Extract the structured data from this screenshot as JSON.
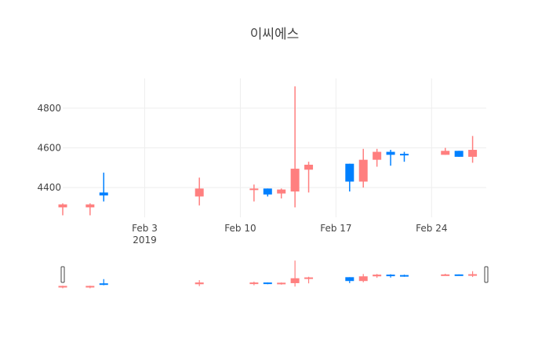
{
  "chart_data": {
    "type": "candlestick",
    "title": "이씨에스",
    "x_tick_labels": [
      "Feb 3\n2019",
      "Feb 10",
      "Feb 17",
      "Feb 24"
    ],
    "x_tick_dates": [
      "2019-02-03",
      "2019-02-10",
      "2019-02-17",
      "2019-02-24"
    ],
    "y_tick_labels": [
      "4400",
      "4600",
      "4800"
    ],
    "y_tick_values": [
      4400,
      4600,
      4800
    ],
    "ylim": [
      4250,
      4950
    ],
    "xrange": [
      "2019-01-28",
      "2019-02-28"
    ],
    "grid": true,
    "range_slider": true,
    "increasing_color": "#ff7f7f",
    "decreasing_color": "#0080ff",
    "candles": [
      {
        "date": "2019-01-28",
        "open": 4300,
        "high": 4320,
        "low": 4260,
        "close": 4315
      },
      {
        "date": "2019-01-30",
        "open": 4300,
        "high": 4320,
        "low": 4260,
        "close": 4315
      },
      {
        "date": "2019-01-31",
        "open": 4375,
        "high": 4475,
        "low": 4330,
        "close": 4360
      },
      {
        "date": "2019-02-07",
        "open": 4355,
        "high": 4450,
        "low": 4310,
        "close": 4395
      },
      {
        "date": "2019-02-11",
        "open": 4390,
        "high": 4415,
        "low": 4330,
        "close": 4395
      },
      {
        "date": "2019-02-12",
        "open": 4395,
        "high": 4395,
        "low": 4355,
        "close": 4365
      },
      {
        "date": "2019-02-13",
        "open": 4370,
        "high": 4395,
        "low": 4345,
        "close": 4390
      },
      {
        "date": "2019-02-14",
        "open": 4380,
        "high": 4910,
        "low": 4300,
        "close": 4495
      },
      {
        "date": "2019-02-15",
        "open": 4490,
        "high": 4530,
        "low": 4375,
        "close": 4515
      },
      {
        "date": "2019-02-18",
        "open": 4520,
        "high": 4520,
        "low": 4380,
        "close": 4430
      },
      {
        "date": "2019-02-19",
        "open": 4430,
        "high": 4595,
        "low": 4400,
        "close": 4540
      },
      {
        "date": "2019-02-20",
        "open": 4540,
        "high": 4595,
        "low": 4505,
        "close": 4580
      },
      {
        "date": "2019-02-21",
        "open": 4580,
        "high": 4590,
        "low": 4510,
        "close": 4565
      },
      {
        "date": "2019-02-22",
        "open": 4570,
        "high": 4580,
        "low": 4530,
        "close": 4565
      },
      {
        "date": "2019-02-25",
        "open": 4565,
        "high": 4600,
        "low": 4565,
        "close": 4585
      },
      {
        "date": "2019-02-26",
        "open": 4585,
        "high": 4585,
        "low": 4555,
        "close": 4555
      },
      {
        "date": "2019-02-27",
        "open": 4555,
        "high": 4660,
        "low": 4525,
        "close": 4590
      }
    ]
  }
}
